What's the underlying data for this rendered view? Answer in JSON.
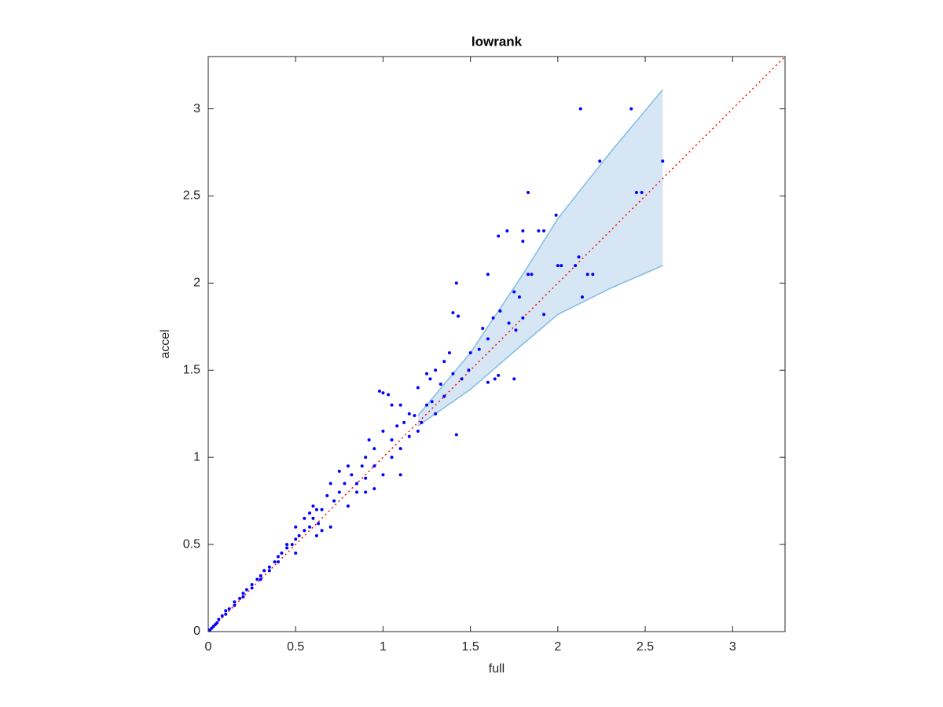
{
  "chart_data": {
    "type": "scatter",
    "title": "lowrank",
    "xlabel": "full",
    "ylabel": "accel",
    "xlim": [
      0,
      3.3
    ],
    "ylim": [
      0,
      3.3
    ],
    "xticks": [
      0,
      0.5,
      1,
      1.5,
      2,
      2.5,
      3
    ],
    "yticks": [
      0,
      0.5,
      1,
      1.5,
      2,
      2.5,
      3
    ],
    "color": "#0000ff",
    "x": [
      2.13,
      2.42,
      2.6,
      2.24,
      1.83,
      2.45,
      2.48,
      1.99,
      1.71,
      1.8,
      1.89,
      1.92,
      1.66,
      1.8,
      2.0,
      2.02,
      2.12,
      2.1,
      2.17,
      1.83,
      1.85,
      1.6,
      1.42,
      2.2,
      2.14,
      1.78,
      1.75,
      1.8,
      1.72,
      1.76,
      1.63,
      1.67,
      1.92,
      1.4,
      1.43,
      1.6,
      1.55,
      1.57,
      1.49,
      1.6,
      1.64,
      1.66,
      1.75,
      1.42,
      1.5,
      1.38,
      1.35,
      1.45,
      1.3,
      1.27,
      1.25,
      1.33,
      1.4,
      1.2,
      1.0,
      1.03,
      0.98,
      1.05,
      1.1,
      1.15,
      1.18,
      1.12,
      1.08,
      1.25,
      1.22,
      1.05,
      1.0,
      0.95,
      0.92,
      0.9,
      0.88,
      0.95,
      1.1,
      1.05,
      1.0,
      0.85,
      0.82,
      0.8,
      0.78,
      0.85,
      0.9,
      0.75,
      0.72,
      0.7,
      0.65,
      0.68,
      0.62,
      0.6,
      0.63,
      0.58,
      0.6,
      0.55,
      0.55,
      0.52,
      0.5,
      0.5,
      0.48,
      0.45,
      0.45,
      0.42,
      0.4,
      0.4,
      0.38,
      0.35,
      0.35,
      0.32,
      0.3,
      0.3,
      0.28,
      0.25,
      0.25,
      0.22,
      0.2,
      0.2,
      0.18,
      0.15,
      0.15,
      0.12,
      0.1,
      0.1,
      0.08,
      0.06,
      0.05,
      0.04,
      0.03,
      0.02,
      0.01,
      0.7,
      0.65,
      0.8,
      0.9,
      0.95,
      1.1,
      1.15,
      1.3,
      1.35,
      0.75,
      0.58,
      0.5,
      0.62,
      1.2,
      1.28
    ],
    "values": [
      3.0,
      3.0,
      2.7,
      2.7,
      2.52,
      2.52,
      2.52,
      2.39,
      2.3,
      2.3,
      2.3,
      2.3,
      2.27,
      2.24,
      2.1,
      2.1,
      2.15,
      2.1,
      2.05,
      2.05,
      2.05,
      2.05,
      2.0,
      2.05,
      1.92,
      1.92,
      1.95,
      1.8,
      1.77,
      1.73,
      1.8,
      1.84,
      1.82,
      1.83,
      1.81,
      1.68,
      1.62,
      1.74,
      1.5,
      1.43,
      1.45,
      1.47,
      1.45,
      1.13,
      1.6,
      1.6,
      1.55,
      1.45,
      1.5,
      1.45,
      1.48,
      1.42,
      1.48,
      1.4,
      1.37,
      1.36,
      1.38,
      1.3,
      1.3,
      1.25,
      1.24,
      1.2,
      1.18,
      1.3,
      1.2,
      1.1,
      1.15,
      1.05,
      1.1,
      1.0,
      0.95,
      0.95,
      0.9,
      1.0,
      0.9,
      0.85,
      0.9,
      0.95,
      0.85,
      0.8,
      0.88,
      0.8,
      0.75,
      0.85,
      0.7,
      0.78,
      0.7,
      0.65,
      0.62,
      0.6,
      0.72,
      0.58,
      0.65,
      0.55,
      0.53,
      0.6,
      0.5,
      0.5,
      0.48,
      0.45,
      0.43,
      0.4,
      0.4,
      0.37,
      0.35,
      0.35,
      0.32,
      0.3,
      0.3,
      0.27,
      0.25,
      0.24,
      0.22,
      0.2,
      0.19,
      0.17,
      0.15,
      0.13,
      0.12,
      0.1,
      0.09,
      0.07,
      0.05,
      0.04,
      0.03,
      0.02,
      0.01,
      0.6,
      0.58,
      0.72,
      0.8,
      0.82,
      1.05,
      1.12,
      1.25,
      1.35,
      0.92,
      0.68,
      0.45,
      0.55,
      1.15,
      1.32
    ],
    "band": {
      "x": [
        1.2,
        1.5,
        1.8,
        2.0,
        2.3,
        2.6
      ],
      "upper": [
        1.24,
        1.6,
        2.05,
        2.37,
        2.75,
        3.11
      ],
      "lower": [
        1.18,
        1.39,
        1.65,
        1.82,
        1.97,
        2.1
      ],
      "color": "#d6e6f4",
      "edge_color": "#80bde3"
    },
    "reference_line": {
      "x": [
        0,
        3.3
      ],
      "y": [
        0,
        3.3
      ],
      "color": "#ff0000"
    }
  }
}
